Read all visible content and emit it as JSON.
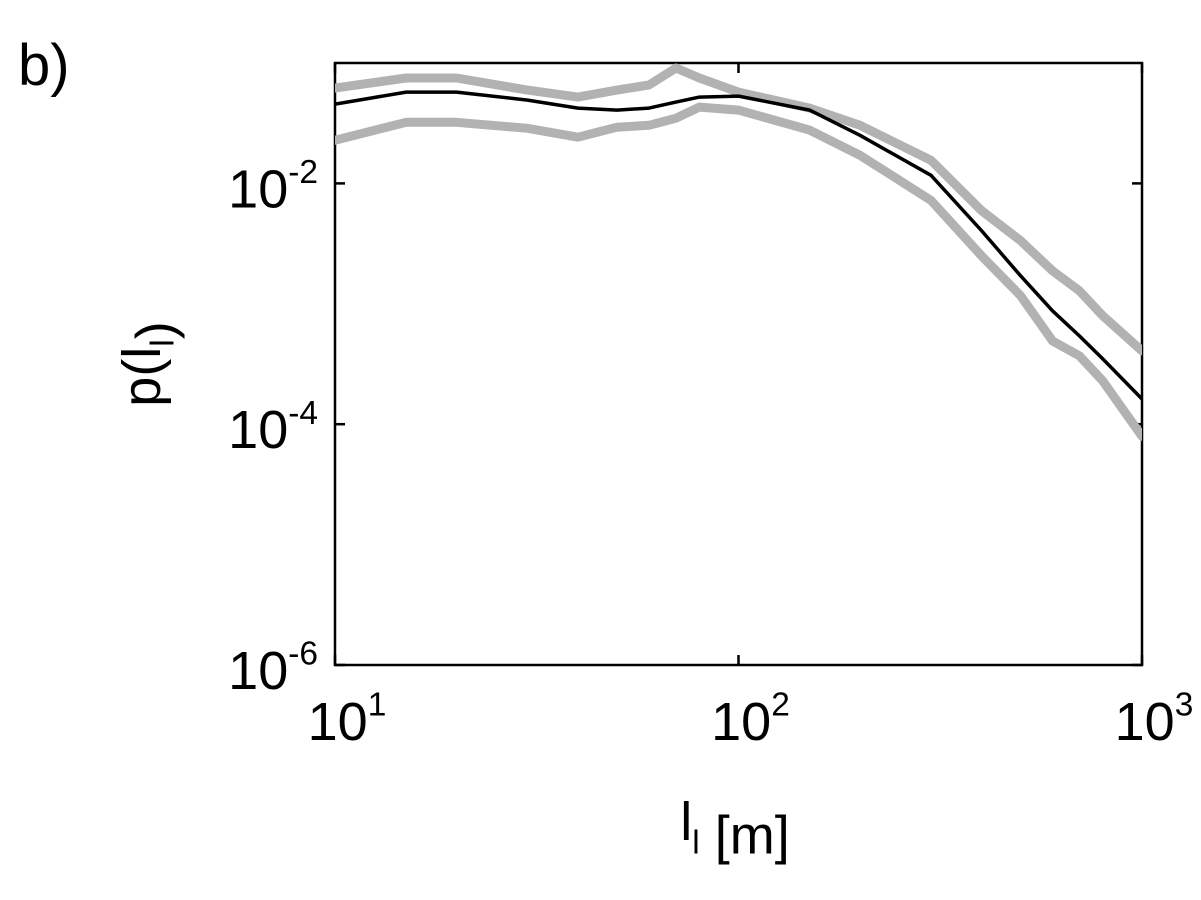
{
  "chart_data": {
    "type": "line",
    "panel_label": "b)",
    "xlabel": "l_l [m]",
    "ylabel": "p(l_l)",
    "log_x": true,
    "log_y": true,
    "grid": false,
    "xlim": [
      10,
      1000
    ],
    "ylim": [
      1e-06,
      0.1
    ],
    "xticks": [
      {
        "value": 10,
        "label": "10^1"
      },
      {
        "value": 100,
        "label": "10^2"
      },
      {
        "value": 1000,
        "label": "10^3"
      }
    ],
    "yticks": [
      {
        "value": 1e-06,
        "label": "10^-6"
      },
      {
        "value": 0.0001,
        "label": "10^-4"
      },
      {
        "value": 0.01,
        "label": "10^-2"
      }
    ],
    "x": [
      10,
      15,
      20,
      30,
      40,
      50,
      60,
      70,
      80,
      100,
      150,
      200,
      300,
      400,
      500,
      600,
      700,
      800,
      1000
    ],
    "series": [
      {
        "color": "#b2b2b2",
        "line_width": 9,
        "values": [
          0.0619,
          0.075,
          0.075,
          0.0596,
          0.0521,
          0.0596,
          0.0656,
          0.0908,
          0.075,
          0.0573,
          0.0422,
          0.0304,
          0.01556,
          0.00596,
          0.00335,
          0.00188,
          0.00128,
          0.000794,
          0.000406
        ]
      },
      {
        "color": "#b2b2b2",
        "line_width": 9,
        "values": [
          0.0228,
          0.0322,
          0.0322,
          0.0287,
          0.0242,
          0.0293,
          0.0304,
          0.0348,
          0.043,
          0.0406,
          0.0277,
          0.0171,
          0.00722,
          0.00251,
          0.00117,
          0.000492,
          0.000369,
          0.000228,
          7.94e-05
        ]
      },
      {
        "color": "#000000",
        "line_width": 3.5,
        "values": [
          0.0455,
          0.0573,
          0.0573,
          0.0492,
          0.0422,
          0.0406,
          0.0422,
          0.0473,
          0.0521,
          0.0531,
          0.0406,
          0.0251,
          0.01167,
          0.00406,
          0.00171,
          0.000875,
          0.00054,
          0.000348,
          0.000162
        ]
      }
    ]
  }
}
